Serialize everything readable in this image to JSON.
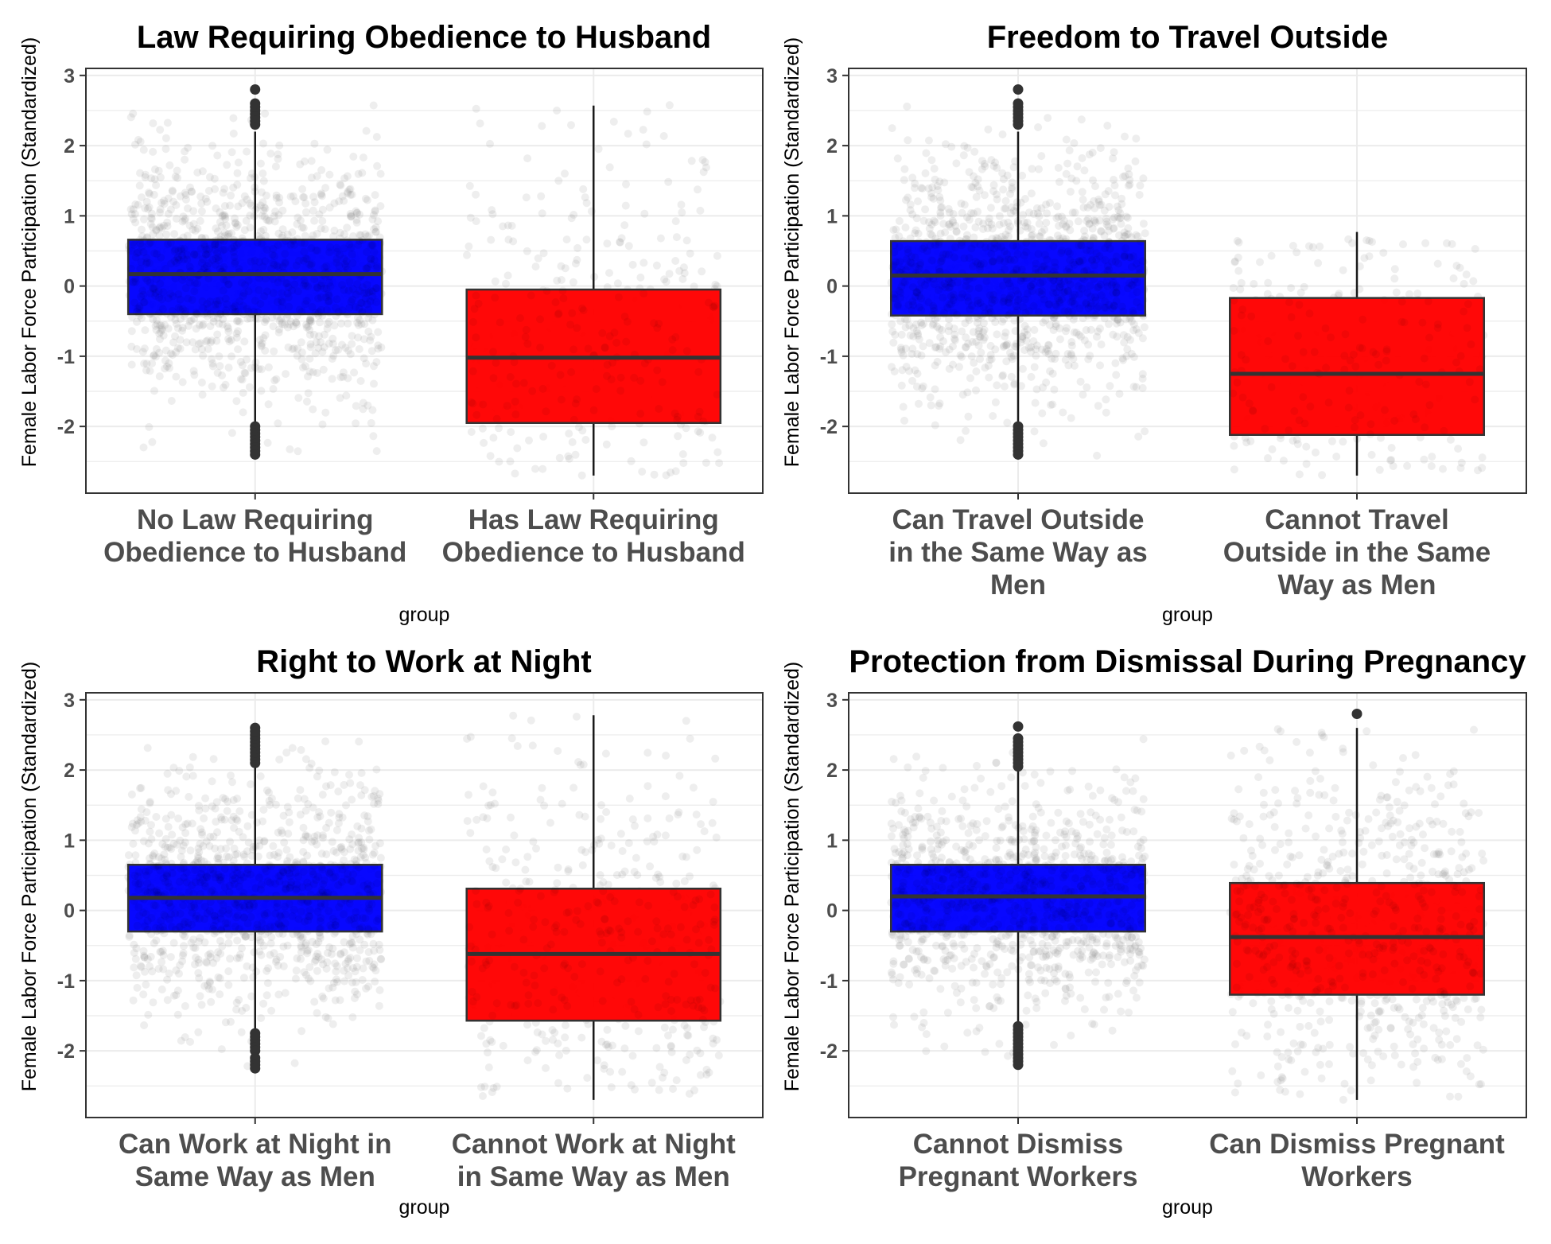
{
  "colors": {
    "box_fill": [
      "#0000FF",
      "#FF0000"
    ],
    "box_stroke": "#333333",
    "whisker": "#1a1a1a",
    "outlier": "#333333",
    "jitter": "#888888",
    "panel_border": "#333333",
    "grid": "#ebebeb",
    "background": "#ffffff"
  },
  "chart_data": [
    {
      "type": "boxplot",
      "title": "Law Requiring Obedience to Husband",
      "xlabel": "group",
      "ylabel": "Female Labor Force Participation (Standardized)",
      "ylim": [
        -2.95,
        3.1
      ],
      "yticks": [
        -2,
        -1,
        0,
        1,
        2,
        3
      ],
      "ytick_labels": [
        "-2",
        "-1",
        "0",
        "1",
        "2",
        "3"
      ],
      "grid": true,
      "legend": "none",
      "categories": [
        [
          "No Law Requiring",
          "Obedience to Husband"
        ],
        [
          "Has Law Requiring",
          "Obedience to Husband"
        ]
      ],
      "boxes": [
        {
          "whisker_low": -2.3,
          "q1": -0.4,
          "median": 0.17,
          "q3": 0.66,
          "whisker_high": 2.2,
          "outliers_low": [
            -2.0,
            -2.05,
            -2.1,
            -2.15,
            -2.2,
            -2.25,
            -2.3,
            -2.35,
            -2.4
          ],
          "outliers_high": [
            2.3,
            2.35,
            2.4,
            2.45,
            2.5,
            2.55,
            2.6,
            2.8
          ],
          "jitter_count": 1100,
          "jitter_range": [
            -2.45,
            2.65
          ]
        },
        {
          "whisker_low": -2.7,
          "q1": -1.95,
          "median": -1.02,
          "q3": -0.05,
          "whisker_high": 2.57,
          "outliers_low": [],
          "outliers_high": [],
          "jitter_count": 300,
          "jitter_range": [
            -2.7,
            2.6
          ]
        }
      ]
    },
    {
      "type": "boxplot",
      "title": "Freedom to Travel Outside",
      "xlabel": "group",
      "ylabel": "Female Labor Force Participation (Standardized)",
      "ylim": [
        -2.95,
        3.1
      ],
      "yticks": [
        -2,
        -1,
        0,
        1,
        2,
        3
      ],
      "ytick_labels": [
        "-2",
        "-1",
        "0",
        "1",
        "2",
        "3"
      ],
      "grid": true,
      "legend": "none",
      "categories": [
        [
          "Can Travel Outside",
          "in the Same Way as",
          "Men"
        ],
        [
          "Cannot Travel",
          "Outside in the Same",
          "Way as Men"
        ]
      ],
      "boxes": [
        {
          "whisker_low": -2.3,
          "q1": -0.42,
          "median": 0.15,
          "q3": 0.64,
          "whisker_high": 2.2,
          "outliers_low": [
            -2.0,
            -2.05,
            -2.1,
            -2.15,
            -2.2,
            -2.25,
            -2.3,
            -2.35,
            -2.4
          ],
          "outliers_high": [
            2.3,
            2.35,
            2.4,
            2.45,
            2.5,
            2.55,
            2.6,
            2.8
          ],
          "jitter_count": 1150,
          "jitter_range": [
            -2.45,
            2.8
          ]
        },
        {
          "whisker_low": -2.7,
          "q1": -2.12,
          "median": -1.25,
          "q3": -0.17,
          "whisker_high": 0.77,
          "outliers_low": [],
          "outliers_high": [],
          "jitter_count": 260,
          "jitter_range": [
            -2.7,
            0.7
          ]
        }
      ]
    },
    {
      "type": "boxplot",
      "title": "Right to Work at Night",
      "xlabel": "group",
      "ylabel": "Female Labor Force Participation (Standardized)",
      "ylim": [
        -2.95,
        3.1
      ],
      "yticks": [
        -2,
        -1,
        0,
        1,
        2,
        3
      ],
      "ytick_labels": [
        "-2",
        "-1",
        "0",
        "1",
        "2",
        "3"
      ],
      "grid": true,
      "legend": "none",
      "categories": [
        [
          "Can Work at Night in",
          "Same Way as Men"
        ],
        [
          "Cannot Work at Night",
          "in Same Way as Men"
        ]
      ],
      "boxes": [
        {
          "whisker_low": -1.7,
          "q1": -0.3,
          "median": 0.18,
          "q3": 0.65,
          "whisker_high": 2.05,
          "outliers_low": [
            -1.75,
            -1.8,
            -1.85,
            -1.9,
            -1.95,
            -2.0,
            -2.1,
            -2.15,
            -2.2,
            -2.25
          ],
          "outliers_high": [
            2.1,
            2.15,
            2.2,
            2.25,
            2.3,
            2.35,
            2.4,
            2.45,
            2.5,
            2.55,
            2.6
          ],
          "jitter_count": 1050,
          "jitter_range": [
            -2.3,
            2.6
          ]
        },
        {
          "whisker_low": -2.7,
          "q1": -1.57,
          "median": -0.62,
          "q3": 0.31,
          "whisker_high": 2.78,
          "outliers_low": [],
          "outliers_high": [],
          "jitter_count": 420,
          "jitter_range": [
            -2.7,
            2.8
          ]
        }
      ]
    },
    {
      "type": "boxplot",
      "title": "Protection from Dismissal During Pregnancy",
      "xlabel": "group",
      "ylabel": "Female Labor Force Participation (Standardized)",
      "ylim": [
        -2.95,
        3.1
      ],
      "yticks": [
        -2,
        -1,
        0,
        1,
        2,
        3
      ],
      "ytick_labels": [
        "-2",
        "-1",
        "0",
        "1",
        "2",
        "3"
      ],
      "grid": true,
      "legend": "none",
      "categories": [
        [
          "Cannot Dismiss",
          "Pregnant Workers"
        ],
        [
          "Can Dismiss Pregnant",
          "Workers"
        ]
      ],
      "boxes": [
        {
          "whisker_low": -1.6,
          "q1": -0.3,
          "median": 0.2,
          "q3": 0.65,
          "whisker_high": 2.0,
          "outliers_low": [
            -1.65,
            -1.7,
            -1.75,
            -1.8,
            -1.85,
            -1.9,
            -1.95,
            -2.0,
            -2.05,
            -2.1,
            -2.15,
            -2.2
          ],
          "outliers_high": [
            2.05,
            2.1,
            2.15,
            2.2,
            2.25,
            2.3,
            2.35,
            2.4,
            2.45,
            2.62
          ],
          "jitter_count": 1000,
          "jitter_range": [
            -2.25,
            2.6
          ]
        },
        {
          "whisker_low": -2.7,
          "q1": -1.2,
          "median": -0.38,
          "q3": 0.39,
          "whisker_high": 2.6,
          "outliers_low": [],
          "outliers_high": [
            2.8
          ],
          "jitter_count": 620,
          "jitter_range": [
            -2.7,
            2.6
          ]
        }
      ]
    }
  ]
}
